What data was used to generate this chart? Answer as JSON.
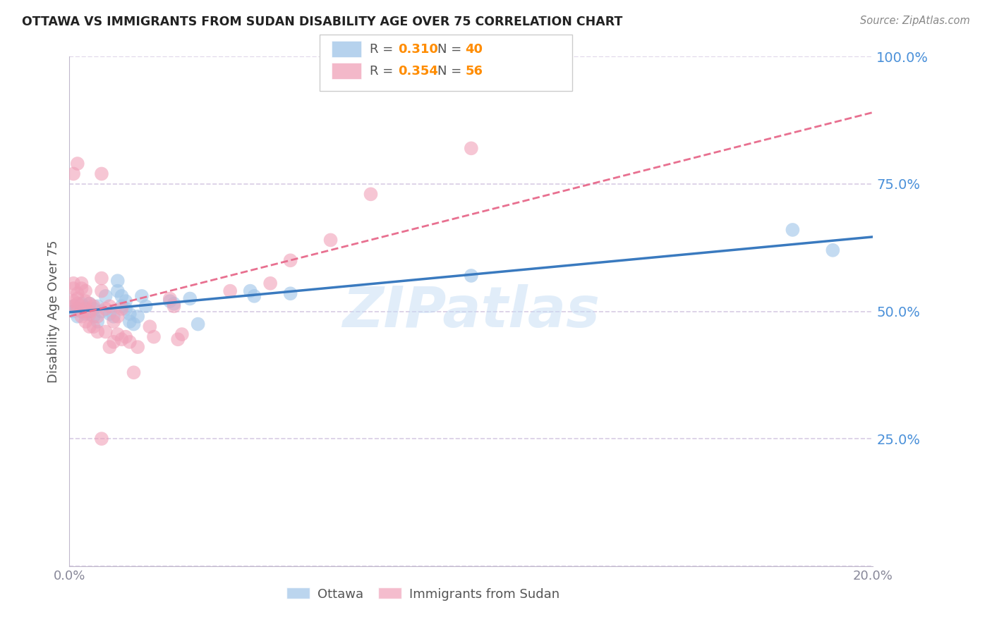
{
  "title": "OTTAWA VS IMMIGRANTS FROM SUDAN DISABILITY AGE OVER 75 CORRELATION CHART",
  "source": "Source: ZipAtlas.com",
  "ylabel": "Disability Age Over 75",
  "x_min": 0.0,
  "x_max": 0.2,
  "y_min": 0.0,
  "y_max": 1.0,
  "ottawa_color": "#9ec4e8",
  "sudan_color": "#f0a0b8",
  "trendline_ottawa_color": "#3a7abf",
  "trendline_sudan_color": "#e87090",
  "watermark": "ZIPatlas",
  "ottawa_R": "0.310",
  "ottawa_N": "40",
  "sudan_R": "0.354",
  "sudan_N": "56",
  "ottawa_points": [
    [
      0.001,
      0.51
    ],
    [
      0.001,
      0.5
    ],
    [
      0.002,
      0.505
    ],
    [
      0.002,
      0.49
    ],
    [
      0.003,
      0.515
    ],
    [
      0.003,
      0.5
    ],
    [
      0.004,
      0.495
    ],
    [
      0.004,
      0.508
    ],
    [
      0.005,
      0.5
    ],
    [
      0.005,
      0.515
    ],
    [
      0.006,
      0.49
    ],
    [
      0.006,
      0.505
    ],
    [
      0.007,
      0.51
    ],
    [
      0.007,
      0.48
    ],
    [
      0.008,
      0.5
    ],
    [
      0.009,
      0.53
    ],
    [
      0.01,
      0.495
    ],
    [
      0.011,
      0.49
    ],
    [
      0.012,
      0.54
    ],
    [
      0.012,
      0.56
    ],
    [
      0.013,
      0.51
    ],
    [
      0.013,
      0.53
    ],
    [
      0.014,
      0.52
    ],
    [
      0.014,
      0.505
    ],
    [
      0.015,
      0.495
    ],
    [
      0.015,
      0.48
    ],
    [
      0.016,
      0.475
    ],
    [
      0.017,
      0.49
    ],
    [
      0.018,
      0.53
    ],
    [
      0.019,
      0.51
    ],
    [
      0.025,
      0.52
    ],
    [
      0.026,
      0.515
    ],
    [
      0.03,
      0.525
    ],
    [
      0.032,
      0.475
    ],
    [
      0.045,
      0.54
    ],
    [
      0.046,
      0.53
    ],
    [
      0.055,
      0.535
    ],
    [
      0.1,
      0.57
    ],
    [
      0.18,
      0.66
    ],
    [
      0.19,
      0.62
    ]
  ],
  "sudan_points": [
    [
      0.001,
      0.51
    ],
    [
      0.001,
      0.52
    ],
    [
      0.001,
      0.545
    ],
    [
      0.001,
      0.555
    ],
    [
      0.002,
      0.505
    ],
    [
      0.002,
      0.515
    ],
    [
      0.002,
      0.525
    ],
    [
      0.002,
      0.535
    ],
    [
      0.003,
      0.49
    ],
    [
      0.003,
      0.5
    ],
    [
      0.003,
      0.545
    ],
    [
      0.003,
      0.555
    ],
    [
      0.004,
      0.505
    ],
    [
      0.004,
      0.52
    ],
    [
      0.004,
      0.54
    ],
    [
      0.004,
      0.48
    ],
    [
      0.005,
      0.5
    ],
    [
      0.005,
      0.515
    ],
    [
      0.005,
      0.495
    ],
    [
      0.005,
      0.47
    ],
    [
      0.006,
      0.51
    ],
    [
      0.006,
      0.47
    ],
    [
      0.007,
      0.49
    ],
    [
      0.007,
      0.46
    ],
    [
      0.008,
      0.565
    ],
    [
      0.008,
      0.54
    ],
    [
      0.009,
      0.505
    ],
    [
      0.009,
      0.46
    ],
    [
      0.01,
      0.51
    ],
    [
      0.01,
      0.43
    ],
    [
      0.011,
      0.48
    ],
    [
      0.011,
      0.44
    ],
    [
      0.012,
      0.49
    ],
    [
      0.012,
      0.455
    ],
    [
      0.013,
      0.505
    ],
    [
      0.013,
      0.445
    ],
    [
      0.014,
      0.45
    ],
    [
      0.015,
      0.44
    ],
    [
      0.016,
      0.38
    ],
    [
      0.017,
      0.43
    ],
    [
      0.02,
      0.47
    ],
    [
      0.021,
      0.45
    ],
    [
      0.025,
      0.525
    ],
    [
      0.026,
      0.51
    ],
    [
      0.027,
      0.445
    ],
    [
      0.028,
      0.455
    ],
    [
      0.04,
      0.54
    ],
    [
      0.05,
      0.555
    ],
    [
      0.055,
      0.6
    ],
    [
      0.065,
      0.64
    ],
    [
      0.002,
      0.79
    ],
    [
      0.001,
      0.77
    ],
    [
      0.008,
      0.25
    ],
    [
      0.075,
      0.73
    ],
    [
      0.1,
      0.82
    ],
    [
      0.008,
      0.77
    ]
  ],
  "yticks": [
    0.0,
    0.25,
    0.5,
    0.75,
    1.0
  ],
  "ytick_labels": [
    "",
    "25.0%",
    "50.0%",
    "75.0%",
    "100.0%"
  ],
  "xticks": [
    0.0,
    0.05,
    0.1,
    0.15,
    0.2
  ],
  "xtick_labels": [
    "0.0%",
    "",
    "",
    "",
    "20.0%"
  ],
  "grid_color": "#d8cce4",
  "axis_color": "#c0b8cc",
  "tick_color_right": "#4a90d9",
  "R_N_color": "#ff8c00",
  "legend_label_color": "#555555",
  "title_color": "#222222",
  "source_color": "#888888",
  "watermark_color": "#c5ddf5",
  "ylabel_color": "#555555",
  "xtick_color": "#888899"
}
